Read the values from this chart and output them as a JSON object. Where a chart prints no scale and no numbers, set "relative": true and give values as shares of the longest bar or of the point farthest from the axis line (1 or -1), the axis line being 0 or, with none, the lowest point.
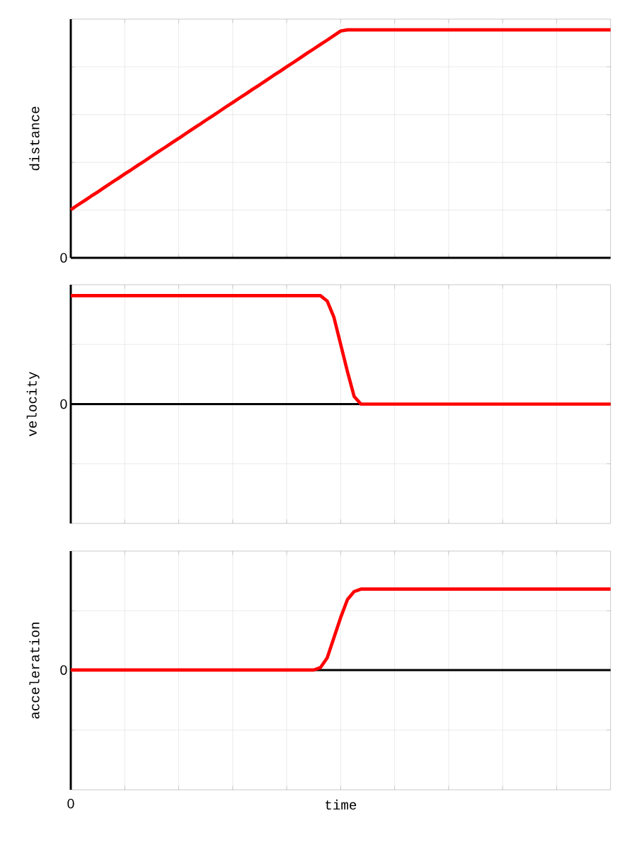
{
  "chart_data": [
    {
      "type": "line",
      "relative": true,
      "ylabel": "distance",
      "grid": true,
      "color": "#ff0000",
      "annotations": [
        "0"
      ],
      "categories": [
        null,
        null,
        null,
        null,
        null,
        null,
        null,
        null,
        null,
        null,
        null,
        null,
        null,
        null,
        null,
        null,
        null,
        null,
        null,
        null,
        null,
        null,
        null,
        null,
        null,
        null,
        null,
        null,
        null,
        null,
        null,
        null,
        null,
        null,
        null,
        null,
        null,
        null,
        null,
        null,
        null,
        null,
        null,
        null,
        null,
        null,
        null,
        null,
        null,
        null,
        null,
        null,
        null,
        null,
        null,
        null,
        null,
        null,
        null,
        null,
        null,
        null,
        null,
        null,
        null,
        null,
        null,
        null,
        null,
        null,
        null,
        null,
        null,
        null,
        null,
        null,
        null,
        null,
        null,
        null,
        null
      ],
      "values": [
        0.211,
        0.231,
        0.25,
        0.27,
        0.289,
        0.309,
        0.329,
        0.348,
        0.368,
        0.387,
        0.407,
        0.426,
        0.446,
        0.466,
        0.485,
        0.505,
        0.524,
        0.544,
        0.564,
        0.583,
        0.603,
        0.622,
        0.642,
        0.662,
        0.681,
        0.701,
        0.72,
        0.74,
        0.759,
        0.779,
        0.799,
        0.818,
        0.838,
        0.857,
        0.877,
        0.897,
        0.916,
        0.936,
        0.955,
        0.975,
        0.995,
        1,
        1,
        1,
        1,
        1,
        1,
        1,
        1,
        1,
        1,
        1,
        1,
        1,
        1,
        1,
        1,
        1,
        1,
        1,
        1,
        1,
        1,
        1,
        1,
        1,
        1,
        1,
        1,
        1,
        1,
        1,
        1,
        1,
        1,
        1,
        1,
        1,
        1,
        1,
        1
      ]
    },
    {
      "type": "line",
      "relative": true,
      "ylabel": "velocity",
      "grid": true,
      "color": "#ff0000",
      "annotations": [
        "0"
      ],
      "categories": [
        null,
        null,
        null,
        null,
        null,
        null,
        null,
        null,
        null,
        null,
        null,
        null,
        null,
        null,
        null,
        null,
        null,
        null,
        null,
        null,
        null,
        null,
        null,
        null,
        null,
        null,
        null,
        null,
        null,
        null,
        null,
        null,
        null,
        null,
        null,
        null,
        null,
        null,
        null,
        null,
        null,
        null,
        null,
        null,
        null,
        null,
        null,
        null,
        null,
        null,
        null,
        null,
        null,
        null,
        null,
        null,
        null,
        null,
        null,
        null,
        null,
        null,
        null,
        null,
        null,
        null,
        null,
        null,
        null,
        null,
        null,
        null,
        null,
        null,
        null,
        null,
        null,
        null,
        null,
        null,
        null
      ],
      "values": [
        1,
        1,
        1,
        1,
        1,
        1,
        1,
        1,
        1,
        1,
        1,
        1,
        1,
        1,
        1,
        1,
        1,
        1,
        1,
        1,
        1,
        1,
        1,
        1,
        1,
        1,
        1,
        1,
        1,
        1,
        1,
        1,
        1,
        1,
        1,
        1,
        1,
        1,
        0.95,
        0.8,
        0.55,
        0.3,
        0.07,
        0,
        0,
        0,
        0,
        0,
        0,
        0,
        0,
        0,
        0,
        0,
        0,
        0,
        0,
        0,
        0,
        0,
        0,
        0,
        0,
        0,
        0,
        0,
        0,
        0,
        0,
        0,
        0,
        0,
        0,
        0,
        0,
        0,
        0,
        0,
        0,
        0,
        0
      ]
    },
    {
      "type": "line",
      "relative": true,
      "ylabel": "acceleration",
      "xlabel": "time",
      "grid": true,
      "color": "#ff0000",
      "annotations": [
        "0",
        "0"
      ],
      "categories": [
        null,
        null,
        null,
        null,
        null,
        null,
        null,
        null,
        null,
        null,
        null,
        null,
        null,
        null,
        null,
        null,
        null,
        null,
        null,
        null,
        null,
        null,
        null,
        null,
        null,
        null,
        null,
        null,
        null,
        null,
        null,
        null,
        null,
        null,
        null,
        null,
        null,
        null,
        null,
        null,
        null,
        null,
        null,
        null,
        null,
        null,
        null,
        null,
        null,
        null,
        null,
        null,
        null,
        null,
        null,
        null,
        null,
        null,
        null,
        null,
        null,
        null,
        null,
        null,
        null,
        null,
        null,
        null,
        null,
        null,
        null,
        null,
        null,
        null,
        null,
        null,
        null,
        null,
        null,
        null,
        null
      ],
      "values": [
        0,
        0,
        0,
        0,
        0,
        0,
        0,
        0,
        0,
        0,
        0,
        0,
        0,
        0,
        0,
        0,
        0,
        0,
        0,
        0,
        0,
        0,
        0,
        0,
        0,
        0,
        0,
        0,
        0,
        0,
        0,
        0,
        0,
        0,
        0,
        0,
        0,
        0.03,
        0.15,
        0.4,
        0.65,
        0.87,
        0.97,
        1,
        1,
        1,
        1,
        1,
        1,
        1,
        1,
        1,
        1,
        1,
        1,
        1,
        1,
        1,
        1,
        1,
        1,
        1,
        1,
        1,
        1,
        1,
        1,
        1,
        1,
        1,
        1,
        1,
        1,
        1,
        1,
        1,
        1,
        1,
        1,
        1,
        1
      ]
    }
  ]
}
